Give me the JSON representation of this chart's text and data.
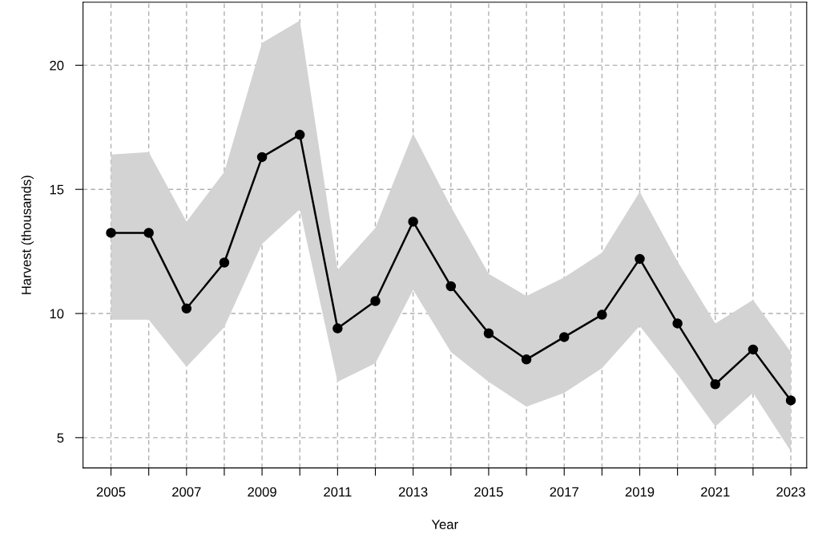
{
  "chart_data": {
    "type": "line",
    "xlabel": "Year",
    "ylabel": "Harvest (thousands)",
    "x": [
      2005,
      2006,
      2007,
      2008,
      2009,
      2010,
      2011,
      2012,
      2013,
      2014,
      2015,
      2016,
      2017,
      2018,
      2019,
      2020,
      2021,
      2022,
      2023
    ],
    "series": [
      {
        "color": "#000000",
        "values": [
          13.25,
          13.25,
          10.2,
          12.05,
          16.3,
          17.2,
          9.4,
          10.5,
          13.7,
          11.1,
          9.2,
          8.15,
          9.05,
          9.95,
          12.2,
          9.6,
          7.15,
          8.55,
          6.5
        ],
        "upper": [
          16.4,
          16.5,
          13.7,
          15.7,
          20.9,
          21.8,
          11.75,
          13.45,
          17.25,
          14.3,
          11.6,
          10.7,
          11.45,
          12.45,
          14.9,
          12.1,
          9.6,
          10.55,
          8.45
        ],
        "lower": [
          9.75,
          9.75,
          7.85,
          9.45,
          12.8,
          14.2,
          7.25,
          8.0,
          10.95,
          8.45,
          7.25,
          6.25,
          6.8,
          7.8,
          9.5,
          7.55,
          5.45,
          6.8,
          4.45
        ]
      }
    ],
    "xlim": [
      2004.26,
      2023.42
    ],
    "ylim": [
      3.78,
      22.54
    ],
    "xticks": [
      2005,
      {
        "value": 2006,
        "label": null
      },
      2007,
      {
        "value": 2008,
        "label": null
      },
      2009,
      {
        "value": 2010,
        "label": null
      },
      2011,
      {
        "value": 2012,
        "label": null
      },
      2013,
      {
        "value": 2014,
        "label": null
      },
      2015,
      {
        "value": 2016,
        "label": null
      },
      2017,
      {
        "value": 2018,
        "label": null
      },
      2019,
      {
        "value": 2020,
        "label": null
      },
      2021,
      {
        "value": 2022,
        "label": null
      },
      2023
    ],
    "yticks": [
      5,
      10,
      15,
      20
    ],
    "grid": true,
    "marker": "circle",
    "line_style": "solid"
  }
}
